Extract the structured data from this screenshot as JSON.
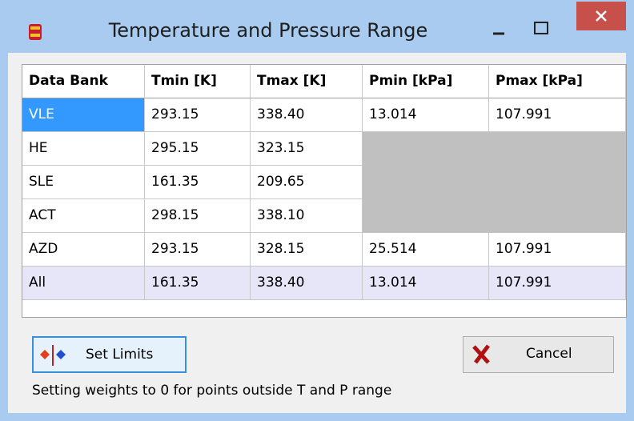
{
  "window": {
    "title": "Temperature and Pressure Range"
  },
  "table": {
    "headers": [
      "Data Bank",
      "Tmin [K]",
      "Tmax [K]",
      "Pmin [kPa]",
      "Pmax [kPa]"
    ],
    "rows": [
      [
        "VLE",
        "293.15",
        "338.40",
        "13.014",
        "107.991"
      ],
      [
        "HE",
        "295.15",
        "323.15"
      ],
      [
        "SLE",
        "161.35",
        "209.65"
      ],
      [
        "ACT",
        "298.15",
        "338.10"
      ],
      [
        "AZD",
        "293.15",
        "328.15",
        "25.514",
        "107.991"
      ],
      [
        "All",
        "161.35",
        "338.40",
        "13.014",
        "107.991"
      ]
    ]
  },
  "buttons": {
    "set_limits": "Set Limits",
    "cancel": "Cancel"
  },
  "status": "Setting weights to 0 for points outside T and P range"
}
